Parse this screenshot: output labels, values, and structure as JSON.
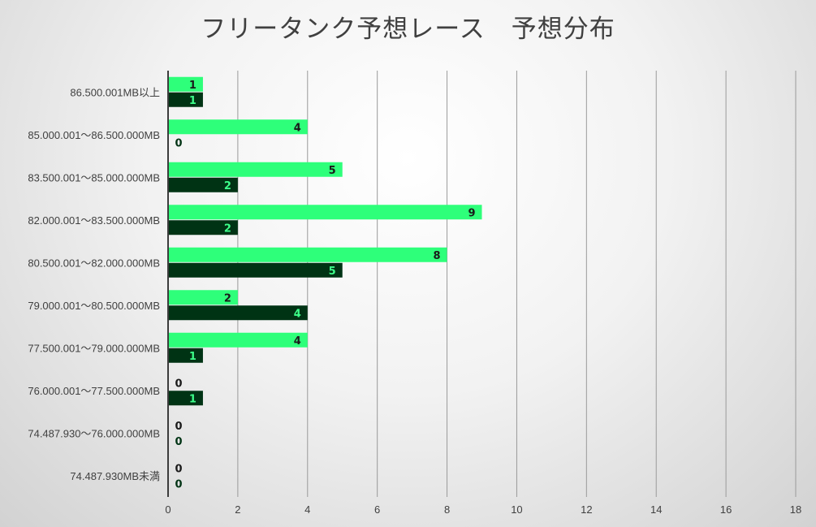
{
  "chart_data": {
    "type": "bar",
    "orientation": "horizontal",
    "title": "フリータンク予想レース　予想分布",
    "categories": [
      "86.500.001MB以上",
      "85.000.001～86.500.000MB",
      "83.500.001～85.000.000MB",
      "82.000.001～83.500.000MB",
      "80.500.001～82.000.000MB",
      "79.000.001～80.500.000MB",
      "77.500.001～79.000.000MB",
      "76.000.001～77.500.000MB",
      "74.487.930～76.000.000MB",
      "74.487.930MB未満"
    ],
    "series": [
      {
        "color": "#2EFF7A",
        "label_color": "#1a1a1a",
        "values": [
          1,
          4,
          5,
          9,
          8,
          2,
          4,
          0,
          0,
          0
        ]
      },
      {
        "color": "#003314",
        "label_color": "#3DFF8A",
        "values": [
          1,
          0,
          2,
          2,
          5,
          4,
          1,
          1,
          0,
          0
        ]
      }
    ],
    "xlim": [
      0,
      18
    ],
    "xticks": [
      0,
      2,
      4,
      6,
      8,
      10,
      12,
      14,
      16,
      18
    ],
    "grid": true,
    "legend": "none"
  }
}
